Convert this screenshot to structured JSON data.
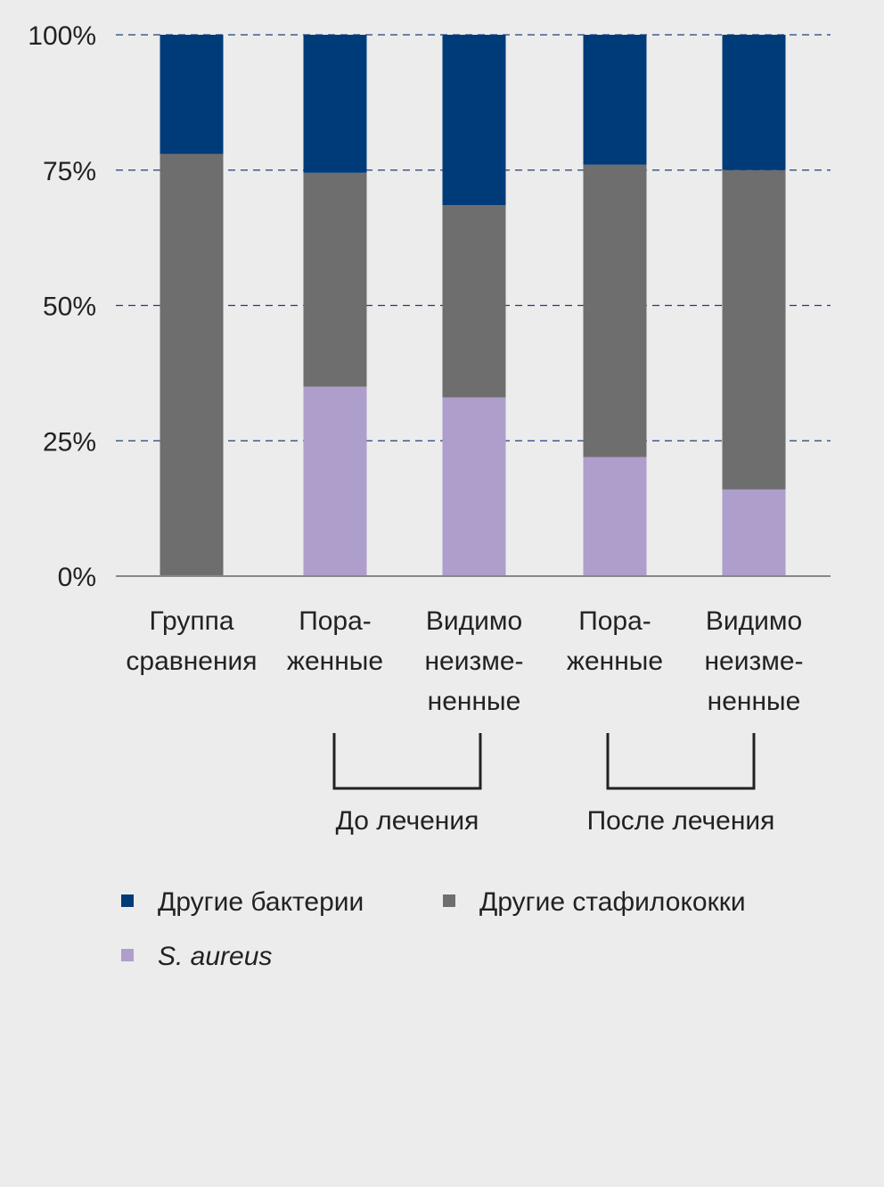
{
  "chart_data": {
    "type": "bar",
    "stacked": true,
    "title": "",
    "xlabel": "",
    "ylabel": "",
    "ylim": [
      0,
      100
    ],
    "y_ticks": [
      "0%",
      "25%",
      "50%",
      "75%",
      "100%"
    ],
    "y_tick_values": [
      0,
      25,
      50,
      75,
      100
    ],
    "grid": "horizontal dashed",
    "categories": [
      [
        "Группа",
        "сравнения"
      ],
      [
        "Пора-",
        "женные"
      ],
      [
        "Видимо",
        "неизме-",
        "ненные"
      ],
      [
        "Пора-",
        "женные"
      ],
      [
        "Видимо",
        "неизме-",
        "ненные"
      ]
    ],
    "series": [
      {
        "name": "S. aureus",
        "color": "#ae9ecb",
        "values": [
          0,
          35,
          33,
          22,
          16
        ]
      },
      {
        "name": "Другие стафилококки",
        "color": "#6e6e6e",
        "values": [
          78,
          39.5,
          35.5,
          54,
          59
        ]
      },
      {
        "name": "Другие бактерии",
        "color": "#003b79",
        "values": [
          22,
          25.5,
          31.5,
          24,
          25
        ]
      }
    ],
    "groups": [
      {
        "label": "До лечения",
        "categories": [
          1,
          2
        ]
      },
      {
        "label": "После лечения",
        "categories": [
          3,
          4
        ]
      }
    ],
    "legend": {
      "placement": "bottom",
      "order": [
        "Другие бактерии",
        "Другие стафилококки",
        "S. aureus"
      ]
    }
  },
  "colors": {
    "background": "#ececec",
    "grid": "#1f3f7a",
    "axis": "#888888",
    "text": "#222222",
    "bracket": "#222222"
  }
}
